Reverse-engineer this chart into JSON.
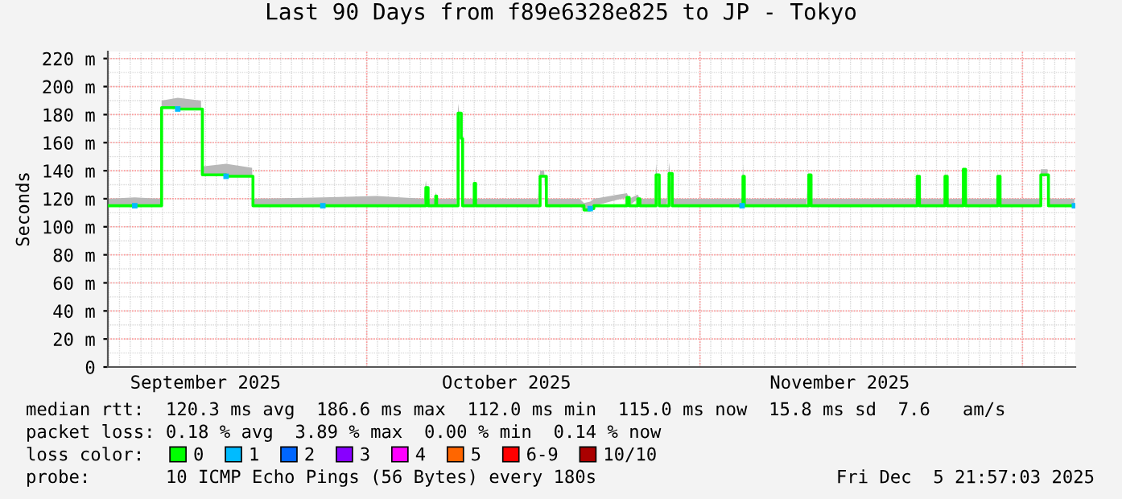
{
  "chart_data": {
    "type": "line",
    "title": "Last 90 Days from f89e6328e825 to JP - Tokyo",
    "ylabel": "Seconds",
    "x": [
      "2025-09-06T22:00",
      "2025-09-09T10:00",
      "2025-09-11T20:00",
      "2025-09-11T22:00",
      "2025-09-13T10:00",
      "2025-09-15T14:00",
      "2025-09-15T17:00",
      "2025-09-17T22:00",
      "2025-09-20T08:00",
      "2025-09-20T10:00",
      "2025-09-26T22:00",
      "2025-10-01T22:00",
      "2025-10-06T08:00",
      "2025-10-06T12:00",
      "2025-10-06T17:00",
      "2025-10-07T08:00",
      "2025-10-07T10:00",
      "2025-10-07T12:00",
      "2025-10-09T08:00",
      "2025-10-09T12:00",
      "2025-10-09T19:00",
      "2025-10-09T22:00",
      "2025-10-10T22:00",
      "2025-10-11T00:00",
      "2025-10-11T03:00",
      "2025-10-16T22:00",
      "2025-10-17T03:00",
      "2025-10-17T12:00",
      "2025-10-17T17:00",
      "2025-10-20T19:00",
      "2025-10-21T05:00",
      "2025-10-21T19:00",
      "2025-10-22T03:00",
      "2025-10-25T05:00",
      "2025-10-25T10:00",
      "2025-10-26T05:00",
      "2025-10-26T10:00",
      "2025-10-27T19:00",
      "2025-10-27T22:00",
      "2025-10-28T05:00",
      "2025-10-28T22:00",
      "2025-10-29T03:00",
      "2025-10-29T10:00",
      "2025-11-04T22:00",
      "2025-11-05T00:00",
      "2025-11-05T03:00",
      "2025-11-10T22:00",
      "2025-11-11T03:00",
      "2025-11-11T08:00",
      "2025-11-21T03:00",
      "2025-11-21T05:00",
      "2025-11-21T10:00",
      "2025-11-23T17:00",
      "2025-11-23T19:00",
      "2025-11-24T00:00",
      "2025-11-25T10:00",
      "2025-11-25T12:00",
      "2025-11-25T17:00",
      "2025-11-28T15:00",
      "2025-11-28T17:00",
      "2025-11-28T22:00",
      "2025-12-02T15:00",
      "2025-12-02T17:00",
      "2025-12-03T08:00",
      "2025-12-03T10:00",
      "2025-12-05T20:00"
    ],
    "series": [
      {
        "name": "0",
        "color": "#00ff00",
        "values": [
          115,
          115,
          115,
          185,
          184,
          184,
          137,
          136,
          136,
          115,
          115,
          115,
          115,
          128,
          115,
          115,
          122,
          115,
          115,
          181,
          163,
          115,
          115,
          131,
          115,
          115,
          136,
          136,
          115,
          115,
          112,
          113,
          115,
          121,
          115,
          120,
          115,
          115,
          137,
          115,
          115,
          138,
          115,
          115,
          136,
          115,
          115,
          137,
          115,
          115,
          136,
          115,
          115,
          136,
          115,
          115,
          141,
          115,
          115,
          136,
          115,
          115,
          137,
          137,
          115,
          115
        ],
        "lower": [
          115,
          115,
          115,
          185,
          184,
          184,
          137,
          136,
          136,
          115,
          115,
          115,
          115,
          128,
          115,
          115,
          122,
          115,
          115,
          181,
          163,
          115,
          115,
          131,
          115,
          115,
          136,
          136,
          115,
          115,
          112,
          113,
          115,
          121,
          115,
          120,
          115,
          115,
          137,
          115,
          115,
          138,
          115,
          115,
          136,
          115,
          115,
          137,
          115,
          115,
          136,
          115,
          115,
          136,
          115,
          115,
          141,
          115,
          115,
          136,
          115,
          115,
          137,
          137,
          115,
          115
        ],
        "upper": [
          120,
          121,
          120,
          190,
          192,
          190,
          143,
          145,
          142,
          120,
          121,
          122,
          120,
          133,
          120,
          120,
          125,
          120,
          120,
          188,
          170,
          120,
          120,
          134,
          120,
          120,
          140,
          140,
          120,
          120,
          117,
          118,
          120,
          124,
          120,
          123,
          120,
          120,
          145,
          120,
          120,
          146,
          120,
          120,
          145,
          120,
          120,
          140,
          120,
          120,
          140,
          120,
          120,
          140,
          120,
          120,
          143,
          120,
          120,
          140,
          120,
          120,
          141,
          141,
          120,
          120
        ]
      },
      {
        "name": "1",
        "color": "#00bbff",
        "type": "scatter",
        "marker": "square",
        "x": [
          "2025-09-09T10:00",
          "2025-09-13T10:00",
          "2025-09-17T22:00",
          "2025-09-26T22:00",
          "2025-10-21T19:00",
          "2025-11-04T22:00",
          "2025-12-05T20:00"
        ],
        "values": [
          115,
          184,
          136,
          115,
          113,
          115,
          115
        ]
      },
      {
        "name": "2",
        "color": "#0066ff",
        "type": "scatter",
        "values": [
          null,
          null,
          null,
          null,
          null,
          null,
          null,
          null,
          null,
          null,
          null,
          null,
          null,
          null,
          null,
          null,
          null,
          null,
          null,
          null,
          null,
          null,
          null,
          null,
          null,
          null,
          null,
          null,
          null,
          null,
          null,
          null,
          null,
          null,
          null,
          null,
          null,
          null,
          null,
          null,
          null,
          null,
          null,
          null,
          null,
          null,
          null,
          null,
          null,
          null,
          null,
          null,
          null,
          null,
          null,
          null,
          null,
          null,
          null,
          null,
          null,
          null,
          null,
          null,
          null,
          null
        ]
      },
      {
        "name": "3",
        "color": "#8800ff",
        "type": "scatter",
        "values": [
          null,
          null,
          null,
          null,
          null,
          null,
          null,
          null,
          null,
          null,
          null,
          null,
          null,
          null,
          null,
          null,
          null,
          null,
          null,
          null,
          null,
          null,
          null,
          null,
          null,
          null,
          null,
          null,
          null,
          null,
          null,
          null,
          null,
          null,
          null,
          null,
          null,
          null,
          null,
          null,
          null,
          null,
          null,
          null,
          null,
          null,
          null,
          null,
          null,
          null,
          null,
          null,
          null,
          null,
          null,
          null,
          null,
          null,
          null,
          null,
          null,
          null,
          null,
          null,
          null,
          null
        ]
      },
      {
        "name": "4",
        "color": "#ff00ff",
        "type": "scatter",
        "values": [
          null,
          null,
          null,
          null,
          null,
          null,
          null,
          null,
          null,
          null,
          null,
          null,
          null,
          null,
          null,
          null,
          null,
          null,
          null,
          null,
          null,
          null,
          null,
          null,
          null,
          null,
          null,
          null,
          null,
          null,
          null,
          null,
          null,
          null,
          null,
          null,
          null,
          null,
          null,
          null,
          null,
          null,
          null,
          null,
          null,
          null,
          null,
          null,
          null,
          null,
          null,
          null,
          null,
          null,
          null,
          null,
          null,
          null,
          null,
          null,
          null,
          null,
          null,
          null,
          null,
          null
        ]
      },
      {
        "name": "5",
        "color": "#ff6600",
        "type": "scatter",
        "values": [
          null,
          null,
          null,
          null,
          null,
          null,
          null,
          null,
          null,
          null,
          null,
          null,
          null,
          null,
          null,
          null,
          null,
          null,
          null,
          null,
          null,
          null,
          null,
          null,
          null,
          null,
          null,
          null,
          null,
          null,
          null,
          null,
          null,
          null,
          null,
          null,
          null,
          null,
          null,
          null,
          null,
          null,
          null,
          null,
          null,
          null,
          null,
          null,
          null,
          null,
          null,
          null,
          null,
          null,
          null,
          null,
          null,
          null,
          null,
          null,
          null,
          null,
          null,
          null,
          null,
          null
        ]
      },
      {
        "name": "6-9",
        "color": "#ff0000",
        "type": "scatter",
        "values": [
          null,
          null,
          null,
          null,
          null,
          null,
          null,
          null,
          null,
          null,
          null,
          null,
          null,
          null,
          null,
          null,
          null,
          null,
          null,
          null,
          null,
          null,
          null,
          null,
          null,
          null,
          null,
          null,
          null,
          null,
          null,
          null,
          null,
          null,
          null,
          null,
          null,
          null,
          null,
          null,
          null,
          null,
          null,
          null,
          null,
          null,
          null,
          null,
          null,
          null,
          null,
          null,
          null,
          null,
          null,
          null,
          null,
          null,
          null,
          null,
          null,
          null,
          null,
          null,
          null,
          null
        ]
      },
      {
        "name": "10/10",
        "color": "#aa0000",
        "type": "scatter",
        "values": [
          null,
          null,
          null,
          null,
          null,
          null,
          null,
          null,
          null,
          null,
          null,
          null,
          null,
          null,
          null,
          null,
          null,
          null,
          null,
          null,
          null,
          null,
          null,
          null,
          null,
          null,
          null,
          null,
          null,
          null,
          null,
          null,
          null,
          null,
          null,
          null,
          null,
          null,
          null,
          null,
          null,
          null,
          null,
          null,
          null,
          null,
          null,
          null,
          null,
          null,
          null,
          null,
          null,
          null,
          null,
          null,
          null,
          null,
          null,
          null,
          null,
          null,
          null,
          null,
          null,
          null
        ]
      }
    ],
    "legend_title": "loss color:",
    "legend": "bottom",
    "grid": true,
    "xlim": [
      "2025-09-06T22:00",
      "2025-12-05T22:00"
    ],
    "xticks": [
      {
        "value": "2025-09-16",
        "label": "September 2025"
      },
      {
        "value": "2025-10-01",
        "label": null
      },
      {
        "value": "2025-10-14",
        "label": "October 2025"
      },
      {
        "value": "2025-11-01",
        "label": null
      },
      {
        "value": "2025-11-14",
        "label": "November 2025"
      },
      {
        "value": "2025-12-01",
        "label": null
      }
    ],
    "ylim": [
      0,
      225
    ],
    "yticks": [
      0,
      {
        "value": 20,
        "label": "20 m"
      },
      {
        "value": 40,
        "label": "40 m"
      },
      {
        "value": 60,
        "label": "60 m"
      },
      {
        "value": 80,
        "label": "80 m"
      },
      {
        "value": 100,
        "label": "100 m"
      },
      {
        "value": 120,
        "label": "120 m"
      },
      {
        "value": 140,
        "label": "140 m"
      },
      {
        "value": 160,
        "label": "160 m"
      },
      {
        "value": 180,
        "label": "180 m"
      },
      {
        "value": 200,
        "label": "200 m"
      },
      {
        "value": 220,
        "label": "220 m"
      }
    ],
    "annotations": [
      "median rtt:  120.3 ms avg  186.6 ms max  112.0 ms min  115.0 ms now  15.8 ms sd  7.6   am/s",
      "packet loss: 0.18 % avg  3.89 % max  0.00 % min  0.14 % now",
      "probe:       10 ICMP Echo Pings (56 Bytes) every 180s",
      "Fri Dec  5 21:57:03 2025"
    ]
  }
}
